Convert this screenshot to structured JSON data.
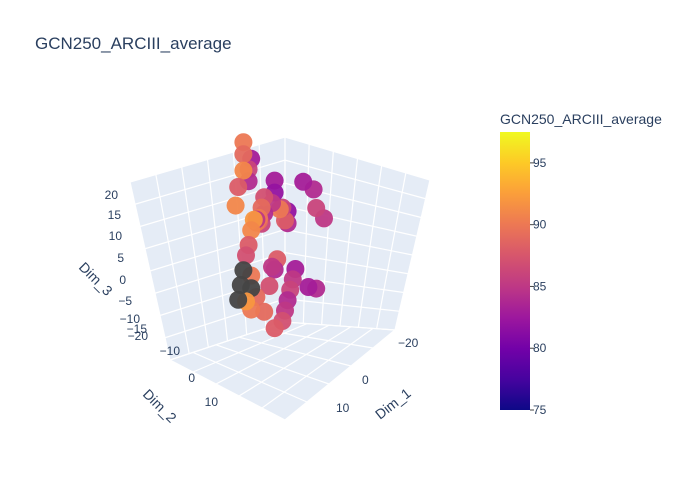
{
  "chart_data": {
    "type": "scatter",
    "title": "GCN250_ARCIII_average",
    "projection": "3d",
    "axes": {
      "x": {
        "label": "Dim_1",
        "ticks": [
          -20,
          0,
          10
        ],
        "tick_labels": [
          "−20",
          "0",
          "10"
        ]
      },
      "y": {
        "label": "Dim_2",
        "ticks": [
          -10,
          0,
          10
        ],
        "tick_labels": [
          "−10",
          "0",
          "10"
        ]
      },
      "z": {
        "label": "Dim_3",
        "ticks": [
          20,
          15,
          10,
          5,
          0,
          -5,
          -10,
          -15,
          -20
        ],
        "tick_labels": [
          "20",
          "15",
          "10",
          "5",
          "0",
          "−5",
          "−10",
          "−15",
          "−20"
        ]
      }
    },
    "colorbar": {
      "title": "GCN250_ARCIII_average",
      "range": [
        75,
        97.5
      ],
      "ticks": [
        75,
        80,
        85,
        90,
        95
      ],
      "colorscale": "plasma",
      "missing_color": "#444444"
    },
    "points": [
      {
        "x": 2,
        "y": -14,
        "z": 17,
        "v": 90
      },
      {
        "x": 4,
        "y": -12,
        "z": 16,
        "v": 89
      },
      {
        "x": 6,
        "y": -10,
        "z": 14,
        "v": 91
      },
      {
        "x": -3,
        "y": -16,
        "z": 10,
        "v": 83
      },
      {
        "x": -1,
        "y": -15,
        "z": 9,
        "v": 86
      },
      {
        "x": 1,
        "y": -13,
        "z": 8,
        "v": 84
      },
      {
        "x": -8,
        "y": -12,
        "z": 4,
        "v": 83
      },
      {
        "x": -6,
        "y": -10,
        "z": 3,
        "v": 82
      },
      {
        "x": -4,
        "y": -9,
        "z": 2,
        "v": 85
      },
      {
        "x": -9,
        "y": -8,
        "z": -2,
        "v": 82
      },
      {
        "x": -7,
        "y": -6,
        "z": -3,
        "v": 84
      },
      {
        "x": -5,
        "y": -5,
        "z": -1,
        "v": 88
      },
      {
        "x": 0,
        "y": -8,
        "z": 2,
        "v": 84
      },
      {
        "x": 2,
        "y": -7,
        "z": 1,
        "v": 86
      },
      {
        "x": 4,
        "y": -6,
        "z": 3,
        "v": 89
      },
      {
        "x": 6,
        "y": -5,
        "z": 4,
        "v": 90
      },
      {
        "x": 8,
        "y": -4,
        "z": 6,
        "v": 92
      },
      {
        "x": 10,
        "y": -3,
        "z": 5,
        "v": 91
      },
      {
        "x": 12,
        "y": -2,
        "z": 3,
        "v": 88
      },
      {
        "x": 14,
        "y": -1,
        "z": 2,
        "v": 87
      },
      {
        "x": 16,
        "y": 0,
        "z": 0,
        "v": null
      },
      {
        "x": 18,
        "y": 1,
        "z": -2,
        "v": null
      },
      {
        "x": 15,
        "y": 2,
        "z": -1,
        "v": 90
      },
      {
        "x": 20,
        "y": 2,
        "z": -4,
        "v": null
      },
      {
        "x": -2,
        "y": 2,
        "z": -8,
        "v": 83
      },
      {
        "x": 0,
        "y": 3,
        "z": -9,
        "v": 85
      },
      {
        "x": 2,
        "y": 4,
        "z": -10,
        "v": 86
      },
      {
        "x": 4,
        "y": 5,
        "z": -11,
        "v": 84
      },
      {
        "x": -4,
        "y": 5,
        "z": -12,
        "v": 83
      },
      {
        "x": -6,
        "y": 6,
        "z": -13,
        "v": 84
      },
      {
        "x": 6,
        "y": 6,
        "z": -12,
        "v": 85
      },
      {
        "x": 8,
        "y": 7,
        "z": -13,
        "v": 87
      },
      {
        "x": 10,
        "y": 6,
        "z": -14,
        "v": 88
      },
      {
        "x": 12,
        "y": 4,
        "z": -10,
        "v": 89
      },
      {
        "x": 5,
        "y": -3,
        "z": 10,
        "v": 87
      },
      {
        "x": 7,
        "y": -2,
        "z": 9,
        "v": 89
      },
      {
        "x": 9,
        "y": -1,
        "z": 8,
        "v": 90
      },
      {
        "x": 11,
        "y": 0,
        "z": 9,
        "v": 85
      },
      {
        "x": -10,
        "y": -3,
        "z": 6,
        "v": 83
      },
      {
        "x": -12,
        "y": -1,
        "z": 4,
        "v": 84
      },
      {
        "x": -11,
        "y": 1,
        "z": 1,
        "v": 86
      },
      {
        "x": -13,
        "y": 2,
        "z": -2,
        "v": 85
      },
      {
        "x": 3,
        "y": 0,
        "z": -4,
        "v": 88
      },
      {
        "x": 5,
        "y": 1,
        "z": -5,
        "v": 84
      },
      {
        "x": 7,
        "y": 2,
        "z": -3,
        "v": 85
      },
      {
        "x": 9,
        "y": 3,
        "z": -6,
        "v": 87
      },
      {
        "x": -1,
        "y": -2,
        "z": 5,
        "v": 86
      },
      {
        "x": 1,
        "y": -1,
        "z": 6,
        "v": 90
      },
      {
        "x": 13,
        "y": -6,
        "z": 11,
        "v": 91
      },
      {
        "x": 10,
        "y": -8,
        "z": 13,
        "v": 88
      },
      {
        "x": 14,
        "y": 3,
        "z": -6,
        "v": 89
      },
      {
        "x": 17,
        "y": 4,
        "z": -7,
        "v": 90
      },
      {
        "x": 16,
        "y": 3,
        "z": -3,
        "v": null
      },
      {
        "x": 18,
        "y": 3,
        "z": -5,
        "v": 92
      }
    ]
  }
}
